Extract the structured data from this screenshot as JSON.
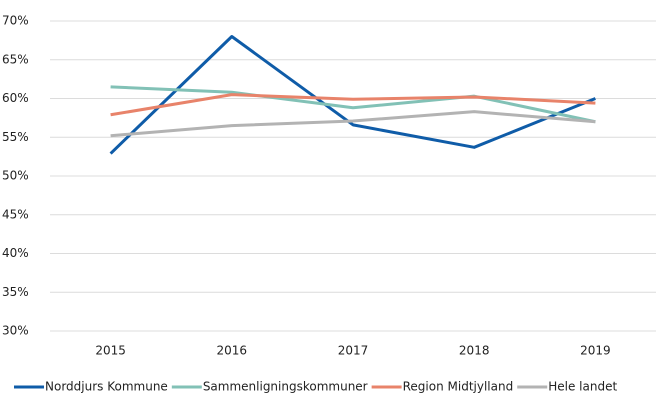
{
  "chart_data": {
    "type": "line",
    "categories": [
      "2015",
      "2016",
      "2017",
      "2018",
      "2019"
    ],
    "series": [
      {
        "name": "Norddjurs Kommune",
        "color": "#0f5ca8",
        "values": [
          52.9,
          68,
          56.6,
          53.7,
          60
        ]
      },
      {
        "name": "Sammenligningskommuner",
        "color": "#82c1b6",
        "values": [
          61.5,
          60.8,
          58.8,
          60.3,
          57
        ]
      },
      {
        "name": "Region Midtjylland",
        "color": "#e8836a",
        "values": [
          57.9,
          60.5,
          59.9,
          60.2,
          59.4
        ]
      },
      {
        "name": "Hele landet",
        "color": "#b3b3b3",
        "values": [
          55.2,
          56.5,
          57.1,
          58.3,
          57
        ]
      }
    ],
    "ylim": [
      30,
      70
    ],
    "yticks": [
      {
        "value": 30,
        "label": "30%"
      },
      {
        "value": 35,
        "label": "35%"
      },
      {
        "value": 40,
        "label": "40%"
      },
      {
        "value": 45,
        "label": "45%"
      },
      {
        "value": 50,
        "label": "50%"
      },
      {
        "value": 55,
        "label": "55%"
      },
      {
        "value": 60,
        "label": "60%"
      },
      {
        "value": 65,
        "label": "65%"
      },
      {
        "value": 70,
        "label": "70%"
      }
    ],
    "grid": true,
    "legend": "bottom"
  }
}
